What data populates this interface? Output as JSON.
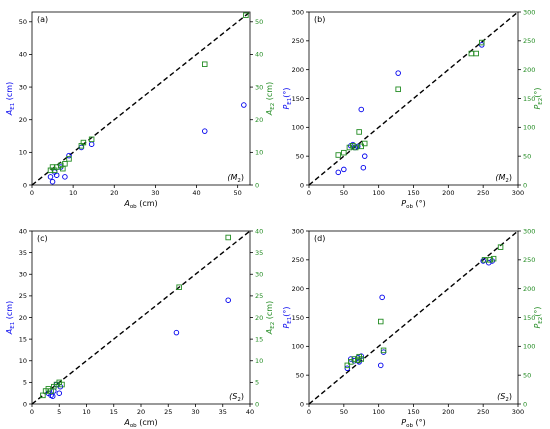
{
  "chart_data": [
    {
      "type": "scatter",
      "panel_label": "(a)",
      "annotation": "(M",
      "annotation_sub": "2",
      "annotation_close": ")",
      "xlabel": "A",
      "xlabel_sub": "ob",
      "xlabel_unit": " (cm)",
      "ylabel_left": "A",
      "ylabel_left_sub": "E1",
      "ylabel_left_unit": " (cm)",
      "ylabel_right": "A",
      "ylabel_right_sub": "E2",
      "ylabel_right_unit": " (cm)",
      "xlim": [
        0,
        53
      ],
      "ylim": [
        0,
        53
      ],
      "xticks": [
        0,
        10,
        20,
        30,
        40,
        50
      ],
      "yticks": [
        0,
        10,
        20,
        30,
        40,
        50
      ],
      "grid": false,
      "reference_line": "y = x dashed",
      "series": [
        {
          "marker": "circle",
          "color": "#0000ee",
          "axis": "left",
          "x": [
            4.5,
            5,
            5.5,
            6,
            7,
            8,
            9,
            12,
            14.5,
            42,
            51.5
          ],
          "y": [
            2.5,
            1,
            4,
            3,
            5.5,
            2.5,
            9,
            11.5,
            12.5,
            16.5,
            24.5
          ]
        },
        {
          "marker": "square",
          "color": "#228b22",
          "axis": "right",
          "x": [
            4.5,
            5,
            5.5,
            6,
            7,
            7.5,
            8,
            9,
            12,
            12.5,
            14.5,
            42,
            52
          ],
          "y": [
            4.5,
            5.5,
            4.5,
            5.5,
            6,
            5,
            6.5,
            8,
            12,
            13,
            14,
            37,
            52
          ]
        }
      ]
    },
    {
      "type": "scatter",
      "panel_label": "(b)",
      "annotation": "(M",
      "annotation_sub": "2",
      "annotation_close": ")",
      "xlabel": "P",
      "xlabel_sub": "ob",
      "xlabel_unit": " (°)",
      "ylabel_left": "P",
      "ylabel_left_sub": "E1",
      "ylabel_left_unit": "(°)",
      "ylabel_right": "P",
      "ylabel_right_sub": "E2",
      "ylabel_right_unit": "(°)",
      "xlim": [
        0,
        300
      ],
      "ylim": [
        0,
        300
      ],
      "xticks": [
        0,
        50,
        100,
        150,
        200,
        250,
        300
      ],
      "yticks": [
        0,
        50,
        100,
        150,
        200,
        250,
        300
      ],
      "grid": false,
      "reference_line": "y = x dashed",
      "series": [
        {
          "marker": "circle",
          "color": "#0000ee",
          "axis": "left",
          "x": [
            42,
            50,
            60,
            63,
            66,
            70,
            75,
            78,
            80,
            128,
            248
          ],
          "y": [
            22,
            27,
            68,
            70,
            65,
            67,
            131,
            30,
            50,
            194,
            243
          ]
        },
        {
          "marker": "square",
          "color": "#228b22",
          "axis": "right",
          "x": [
            42,
            50,
            58,
            63,
            67,
            72,
            75,
            80,
            128,
            233,
            240,
            248
          ],
          "y": [
            52,
            56,
            65,
            68,
            65,
            92,
            67,
            72,
            166,
            228,
            228,
            247
          ]
        }
      ]
    },
    {
      "type": "scatter",
      "panel_label": "(c)",
      "annotation": "(S",
      "annotation_sub": "2",
      "annotation_close": ")",
      "xlabel": "A",
      "xlabel_sub": "ob",
      "xlabel_unit": " (cm)",
      "ylabel_left": "A",
      "ylabel_left_sub": "E1",
      "ylabel_left_unit": " (cm)",
      "ylabel_right": "A",
      "ylabel_right_sub": "E2",
      "ylabel_right_unit": " (cm)",
      "xlim": [
        0,
        40
      ],
      "ylim": [
        0,
        40
      ],
      "xticks": [
        0,
        5,
        10,
        15,
        20,
        25,
        30,
        35,
        40
      ],
      "yticks": [
        0,
        5,
        10,
        15,
        20,
        25,
        30,
        35,
        40
      ],
      "grid": false,
      "reference_line": "y = x dashed",
      "series": [
        {
          "marker": "circle",
          "color": "#0000ee",
          "axis": "left",
          "x": [
            3,
            3.5,
            3.8,
            4,
            4.5,
            5,
            5.2,
            26.5,
            36
          ],
          "y": [
            2.5,
            2,
            1.8,
            3,
            4.5,
            2.5,
            4,
            16.5,
            24
          ]
        },
        {
          "marker": "square",
          "color": "#228b22",
          "axis": "right",
          "x": [
            2,
            2.5,
            3,
            3.5,
            4,
            4.5,
            5,
            5.5,
            27,
            36
          ],
          "y": [
            2,
            3,
            3.5,
            3,
            4,
            4.5,
            5,
            4.5,
            27,
            38.5
          ]
        }
      ]
    },
    {
      "type": "scatter",
      "panel_label": "(d)",
      "annotation": "(S",
      "annotation_sub": "2",
      "annotation_close": ")",
      "xlabel": "P",
      "xlabel_sub": "ob",
      "xlabel_unit": " (°)",
      "ylabel_left": "P",
      "ylabel_left_sub": "E1",
      "ylabel_left_unit": "(°)",
      "ylabel_right": "P",
      "ylabel_right_sub": "E2",
      "ylabel_right_unit": "(°)",
      "xlim": [
        0,
        300
      ],
      "ylim": [
        0,
        300
      ],
      "xticks": [
        0,
        50,
        100,
        150,
        200,
        250,
        300
      ],
      "yticks": [
        0,
        50,
        100,
        150,
        200,
        250,
        300
      ],
      "grid": false,
      "reference_line": "y = x dashed",
      "series": [
        {
          "marker": "circle",
          "color": "#0000ee",
          "axis": "left",
          "x": [
            55,
            60,
            65,
            70,
            72,
            75,
            103,
            105,
            107,
            250,
            258,
            263
          ],
          "y": [
            62,
            78,
            75,
            80,
            73,
            83,
            67,
            185,
            90,
            248,
            245,
            248
          ]
        },
        {
          "marker": "square",
          "color": "#228b22",
          "axis": "right",
          "x": [
            55,
            60,
            65,
            70,
            72,
            75,
            103,
            107,
            252,
            260,
            265,
            275
          ],
          "y": [
            67,
            73,
            78,
            76,
            82,
            78,
            143,
            93,
            250,
            250,
            252,
            272
          ]
        }
      ]
    }
  ]
}
